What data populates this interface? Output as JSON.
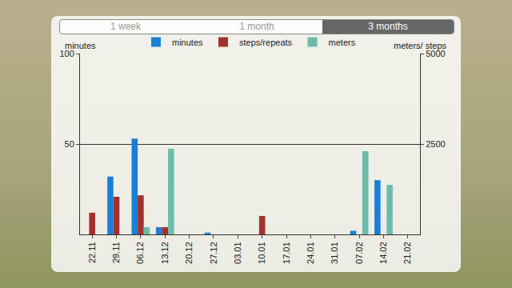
{
  "tabs": {
    "items": [
      "1 week",
      "1 month",
      "3 months"
    ],
    "selected": "3 months"
  },
  "chart_data": {
    "type": "bar",
    "y_label": "minutes",
    "y2_label": "meters/ steps",
    "categories": [
      "22.11",
      "29.11",
      "06.12",
      "13.12",
      "20.12",
      "27.12",
      "03.01",
      "10.01",
      "17.01",
      "24.01",
      "31.01",
      "07.02",
      "14.02",
      "21.02"
    ],
    "series": [
      {
        "name": "minutes",
        "color": "#1a7fd6",
        "values": [
          null,
          32,
          53,
          4,
          null,
          1,
          null,
          null,
          null,
          null,
          null,
          2,
          30,
          null
        ]
      },
      {
        "name": "steps/repeats",
        "color": "#a3312e",
        "axis": "y2",
        "values": [
          600,
          1040,
          1080,
          200,
          null,
          null,
          null,
          510,
          null,
          null,
          null,
          null,
          null,
          null
        ]
      },
      {
        "name": "meters",
        "color": "#6cbcac",
        "axis": "y2",
        "values": [
          null,
          null,
          200,
          2370,
          null,
          null,
          null,
          null,
          null,
          null,
          null,
          2300,
          1370,
          null
        ]
      }
    ],
    "ylim": [
      0,
      100
    ],
    "yticks": [
      50,
      100
    ],
    "y2lim": [
      0,
      5000
    ],
    "y2ticks": [
      2500,
      5000
    ],
    "grid": true,
    "legend": "top"
  }
}
